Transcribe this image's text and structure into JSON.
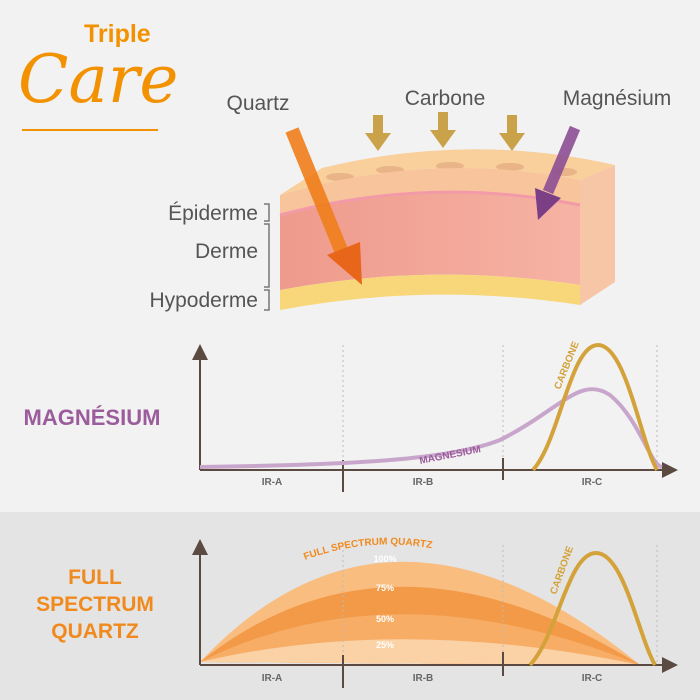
{
  "logo": {
    "line1": "Triple",
    "line2": "Care"
  },
  "skin": {
    "rays": [
      "Quartz",
      "Carbone",
      "Magnésium"
    ],
    "layers": [
      "Épiderme",
      "Derme",
      "Hypoderme"
    ]
  },
  "panels": [
    {
      "title": [
        "MAGNÉSIUM"
      ],
      "curves": [
        "MAGNESIUM",
        "CARBONE"
      ],
      "bands": [
        "IR-A",
        "IR-B",
        "IR-C"
      ]
    },
    {
      "title": [
        "FULL",
        "SPECTRUM",
        "QUARTZ"
      ],
      "curves": [
        "FULL SPECTRUM QUARTZ",
        "CARBONE"
      ],
      "levels": [
        "100%",
        "75%",
        "50%",
        "25%"
      ],
      "bands": [
        "IR-A",
        "IR-B",
        "IR-C"
      ]
    }
  ]
}
